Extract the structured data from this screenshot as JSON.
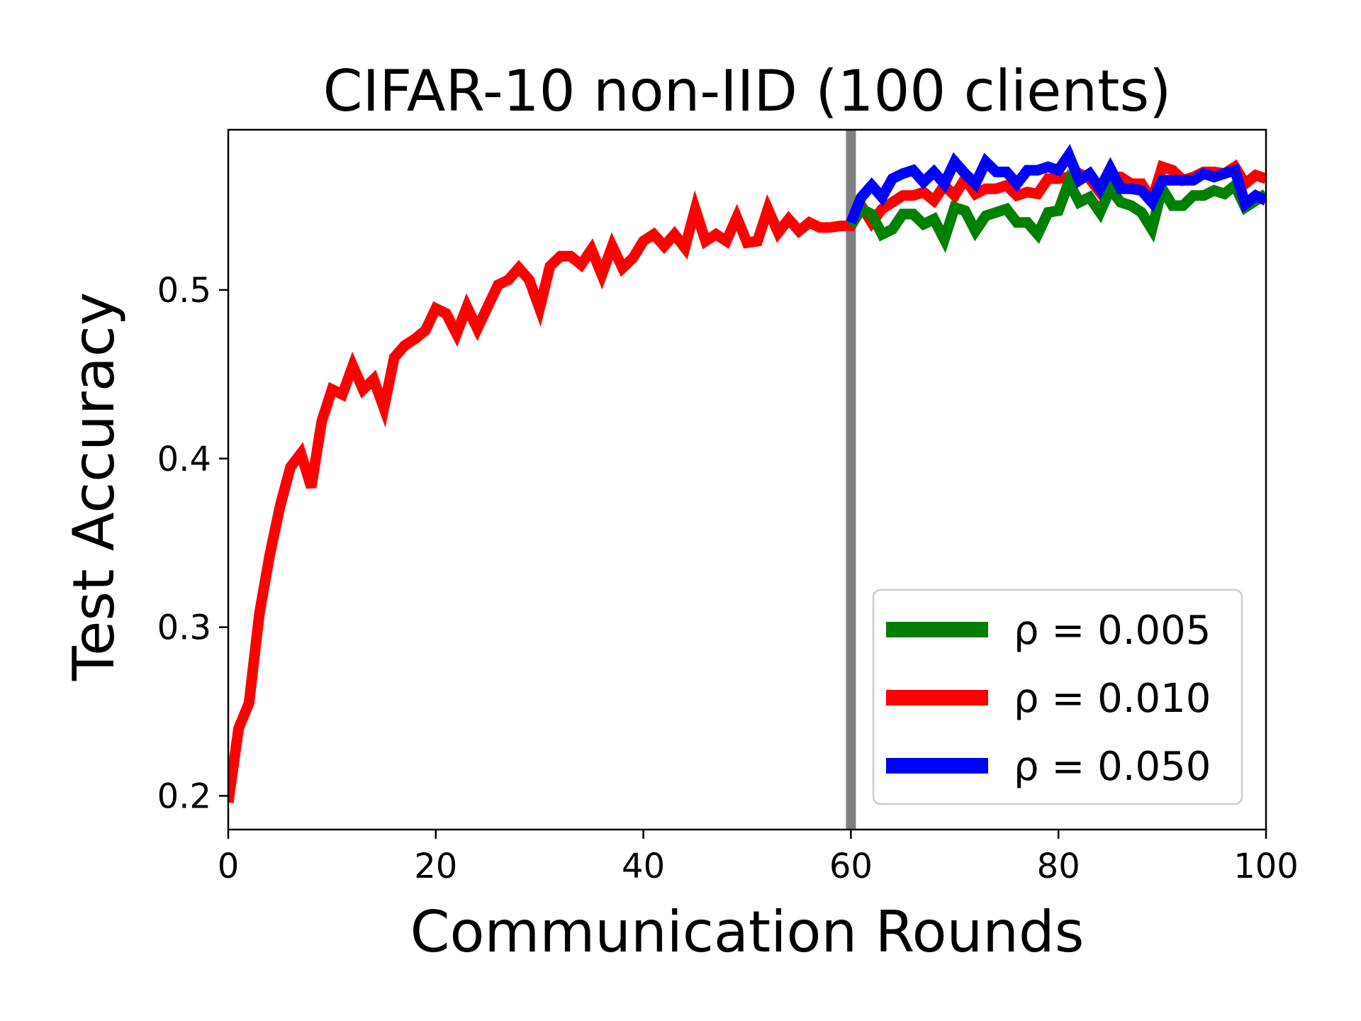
{
  "chart_data": {
    "type": "line",
    "title": "CIFAR-10 non-IID (100 clients)",
    "xlabel": "Communication Rounds",
    "ylabel": "Test Accuracy",
    "xlim": [
      0,
      100
    ],
    "ylim": [
      0.18,
      0.595
    ],
    "xticks": [
      0,
      20,
      40,
      60,
      80,
      100
    ],
    "xtick_labels": [
      "0",
      "20",
      "40",
      "60",
      "80",
      "100"
    ],
    "yticks": [
      0.2,
      0.3,
      0.4,
      0.5
    ],
    "ytick_labels": [
      "0.2",
      "0.3",
      "0.4",
      "0.5"
    ],
    "grid": false,
    "legend_position": "lower-right",
    "vline": {
      "x": 60,
      "color": "#808080"
    },
    "series": [
      {
        "name": "ρ = 0.005",
        "color": "#008000",
        "x": [
          60,
          61,
          62,
          63,
          64,
          65,
          66,
          67,
          68,
          69,
          70,
          71,
          72,
          73,
          74,
          75,
          76,
          77,
          78,
          79,
          80,
          81,
          82,
          83,
          84,
          85,
          86,
          87,
          88,
          89,
          90,
          91,
          92,
          93,
          94,
          95,
          96,
          97,
          98,
          99,
          100
        ],
        "y": [
          0.538,
          0.548,
          0.545,
          0.533,
          0.536,
          0.545,
          0.545,
          0.539,
          0.542,
          0.53,
          0.549,
          0.547,
          0.535,
          0.544,
          0.546,
          0.548,
          0.54,
          0.54,
          0.533,
          0.546,
          0.547,
          0.564,
          0.552,
          0.555,
          0.546,
          0.56,
          0.552,
          0.55,
          0.546,
          0.536,
          0.56,
          0.55,
          0.55,
          0.556,
          0.556,
          0.559,
          0.557,
          0.562,
          0.549,
          0.553,
          0.557
        ]
      },
      {
        "name": "ρ = 0.010",
        "color": "#ff0000",
        "x": [
          0,
          1,
          2,
          3,
          4,
          5,
          6,
          7,
          8,
          9,
          10,
          11,
          12,
          13,
          14,
          15,
          16,
          17,
          18,
          19,
          20,
          21,
          22,
          23,
          24,
          25,
          26,
          27,
          28,
          29,
          30,
          31,
          32,
          33,
          34,
          35,
          36,
          37,
          38,
          39,
          40,
          41,
          42,
          43,
          44,
          45,
          46,
          47,
          48,
          49,
          50,
          51,
          52,
          53,
          54,
          55,
          56,
          57,
          58,
          59,
          60,
          61,
          62,
          63,
          64,
          65,
          66,
          67,
          68,
          69,
          70,
          71,
          72,
          73,
          74,
          75,
          76,
          77,
          78,
          79,
          80,
          81,
          82,
          83,
          84,
          85,
          86,
          87,
          88,
          89,
          90,
          91,
          92,
          93,
          94,
          95,
          96,
          97,
          98,
          99,
          100
        ],
        "y": [
          0.196,
          0.24,
          0.255,
          0.308,
          0.343,
          0.372,
          0.395,
          0.403,
          0.383,
          0.422,
          0.441,
          0.438,
          0.455,
          0.441,
          0.447,
          0.43,
          0.46,
          0.467,
          0.471,
          0.476,
          0.489,
          0.486,
          0.474,
          0.49,
          0.477,
          0.49,
          0.503,
          0.506,
          0.513,
          0.506,
          0.489,
          0.514,
          0.52,
          0.52,
          0.515,
          0.524,
          0.509,
          0.526,
          0.513,
          0.519,
          0.529,
          0.533,
          0.526,
          0.533,
          0.525,
          0.548,
          0.529,
          0.533,
          0.529,
          0.543,
          0.528,
          0.529,
          0.548,
          0.534,
          0.542,
          0.535,
          0.54,
          0.537,
          0.537,
          0.538,
          0.538,
          0.55,
          0.54,
          0.548,
          0.552,
          0.556,
          0.556,
          0.558,
          0.553,
          0.562,
          0.556,
          0.566,
          0.557,
          0.56,
          0.56,
          0.562,
          0.556,
          0.558,
          0.557,
          0.566,
          0.566,
          0.567,
          0.569,
          0.566,
          0.558,
          0.567,
          0.567,
          0.563,
          0.563,
          0.553,
          0.573,
          0.571,
          0.565,
          0.567,
          0.57,
          0.57,
          0.569,
          0.573,
          0.563,
          0.568,
          0.566
        ]
      },
      {
        "name": "ρ = 0.050",
        "color": "#0000ff",
        "x": [
          60,
          61,
          62,
          63,
          64,
          65,
          66,
          67,
          68,
          69,
          70,
          71,
          72,
          73,
          74,
          75,
          76,
          77,
          78,
          79,
          80,
          81,
          82,
          83,
          84,
          85,
          86,
          87,
          88,
          89,
          90,
          91,
          92,
          93,
          94,
          95,
          96,
          97,
          98,
          99,
          100
        ],
        "y": [
          0.54,
          0.555,
          0.562,
          0.555,
          0.566,
          0.569,
          0.571,
          0.564,
          0.57,
          0.563,
          0.576,
          0.569,
          0.563,
          0.576,
          0.57,
          0.57,
          0.563,
          0.571,
          0.571,
          0.573,
          0.571,
          0.58,
          0.565,
          0.569,
          0.56,
          0.572,
          0.56,
          0.56,
          0.559,
          0.552,
          0.565,
          0.565,
          0.565,
          0.565,
          0.569,
          0.567,
          0.569,
          0.571,
          0.551,
          0.556,
          0.553
        ]
      }
    ]
  }
}
